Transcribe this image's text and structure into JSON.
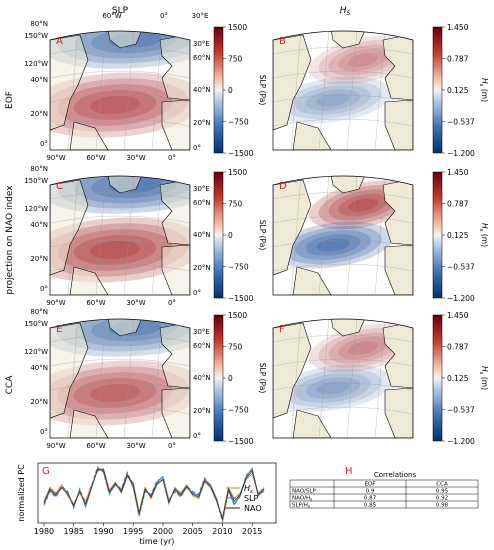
{
  "headers": {
    "slp": "SLP",
    "hs": "H",
    "hs_sub": "S"
  },
  "row_labels": [
    "EOF",
    "projection on NAO index",
    "CCA"
  ],
  "panel_letters": [
    "A",
    "B",
    "C",
    "D",
    "E",
    "F",
    "G",
    "H"
  ],
  "map_top_lons": [
    "60°W",
    "0°",
    "30°E"
  ],
  "map_left_lats": [
    "80°N",
    "150°W",
    "120°W",
    "40°N",
    "20°N",
    "0°"
  ],
  "map_bottom_lons": [
    "90°W",
    "60°W",
    "30°W",
    "0°"
  ],
  "map_right_lats": [
    "30°E",
    "60°N",
    "40°N",
    "20°N",
    "0°"
  ],
  "slp_colorbar": {
    "label": "SLP (Pa)",
    "ticks": [
      "1500",
      "750",
      "0",
      "−750",
      "−1500"
    ]
  },
  "hs_colorbar": {
    "label": "H",
    "label_sub": "s",
    "label_unit": " (m)",
    "ticks": [
      "1.450",
      "0.787",
      "0.125",
      "−0.537",
      "−1.200"
    ]
  },
  "colors": {
    "red": "#9e1a1d",
    "blue": "#1d4f96",
    "land": "#eeead6",
    "ocean": "#ffffff",
    "orange": "#f08a24",
    "nao": "#333333",
    "letter": "#e0201b"
  },
  "chart_data": [
    {
      "type": "line",
      "panel": "G",
      "ylabel": "normalized PC",
      "xlabel": "time (yr)",
      "xlim": [
        1979,
        2019
      ],
      "ylim": [
        -1.1,
        1.1
      ],
      "xticks": [
        "1980",
        "1985",
        "1990",
        "1995",
        "2000",
        "2005",
        "2010",
        "2015"
      ],
      "x": [
        1980,
        1981,
        1982,
        1983,
        1984,
        1985,
        1986,
        1987,
        1988,
        1989,
        1990,
        1991,
        1992,
        1993,
        1994,
        1995,
        1996,
        1997,
        1998,
        1999,
        2000,
        2001,
        2002,
        2003,
        2004,
        2005,
        2006,
        2007,
        2008,
        2009,
        2010,
        2011,
        2012,
        2013,
        2014,
        2015,
        2016,
        2017
      ],
      "series": [
        {
          "name": "",
          "color": "#3b7fc4",
          "dash": "",
          "values": [
            -0.4,
            0.1,
            -0.1,
            0.2,
            0.0,
            -0.5,
            0.1,
            -0.5,
            0.2,
            0.9,
            0.8,
            0.0,
            0.3,
            0.1,
            0.7,
            0.2,
            -0.8,
            0.1,
            -0.1,
            0.4,
            0.6,
            -0.3,
            0.1,
            -0.1,
            0.2,
            0.0,
            -0.1,
            0.5,
            0.3,
            -0.2,
            -1.0,
            0.1,
            -0.4,
            -0.1,
            0.6,
            0.9,
            -0.1,
            0.1
          ]
        },
        {
          "name": "H",
          "name_sub": "s",
          "color": "#f08a24",
          "dash": "",
          "values": [
            -0.3,
            0.2,
            0.0,
            0.3,
            -0.1,
            -0.4,
            0.0,
            -0.3,
            0.3,
            0.8,
            0.9,
            0.1,
            0.4,
            0.0,
            0.6,
            0.4,
            -0.7,
            0.2,
            -0.2,
            0.3,
            0.5,
            -0.4,
            0.2,
            0.0,
            0.3,
            -0.1,
            -0.2,
            0.4,
            0.2,
            -0.3,
            -0.9,
            0.2,
            -0.2,
            0.0,
            0.5,
            0.7,
            0.0,
            0.2
          ]
        },
        {
          "name": "SLP",
          "color": "#3b7fc4",
          "dash": "4,2",
          "values": [
            -0.45,
            0.05,
            -0.15,
            0.25,
            0.05,
            -0.55,
            0.15,
            -0.45,
            0.25,
            0.95,
            0.75,
            -0.05,
            0.35,
            0.15,
            0.75,
            0.25,
            -0.85,
            0.05,
            -0.05,
            0.45,
            0.55,
            -0.25,
            0.05,
            -0.15,
            0.25,
            0.05,
            -0.05,
            0.55,
            0.25,
            -0.25,
            -1.05,
            0.05,
            -0.45,
            -0.05,
            0.65,
            0.85,
            -0.05,
            0.05
          ]
        },
        {
          "name": "NAO",
          "color": "#333333",
          "dash": "",
          "values": [
            -0.35,
            0.15,
            -0.05,
            0.2,
            -0.05,
            -0.45,
            0.05,
            -0.4,
            0.2,
            0.85,
            0.85,
            0.05,
            0.35,
            0.05,
            0.65,
            0.3,
            -0.75,
            0.15,
            -0.15,
            0.35,
            0.5,
            -0.35,
            0.15,
            -0.05,
            0.25,
            -0.05,
            -0.15,
            0.45,
            0.25,
            -0.25,
            -0.95,
            0.15,
            -0.3,
            -0.05,
            0.55,
            0.8,
            -0.05,
            0.15
          ]
        }
      ]
    },
    {
      "type": "table",
      "panel": "H",
      "title": "Correlations",
      "columns": [
        "",
        "EOF",
        "CCA"
      ],
      "rows": [
        {
          "label": "NAO/SLP",
          "values": [
            "0.9",
            "0.95"
          ]
        },
        {
          "label": "NAO/H",
          "label_sub": "s",
          "values": [
            "0.87",
            "0.92"
          ]
        },
        {
          "label": "SLP/H",
          "label_sub": "s",
          "values": [
            "0.85",
            "0.98"
          ]
        }
      ]
    }
  ]
}
